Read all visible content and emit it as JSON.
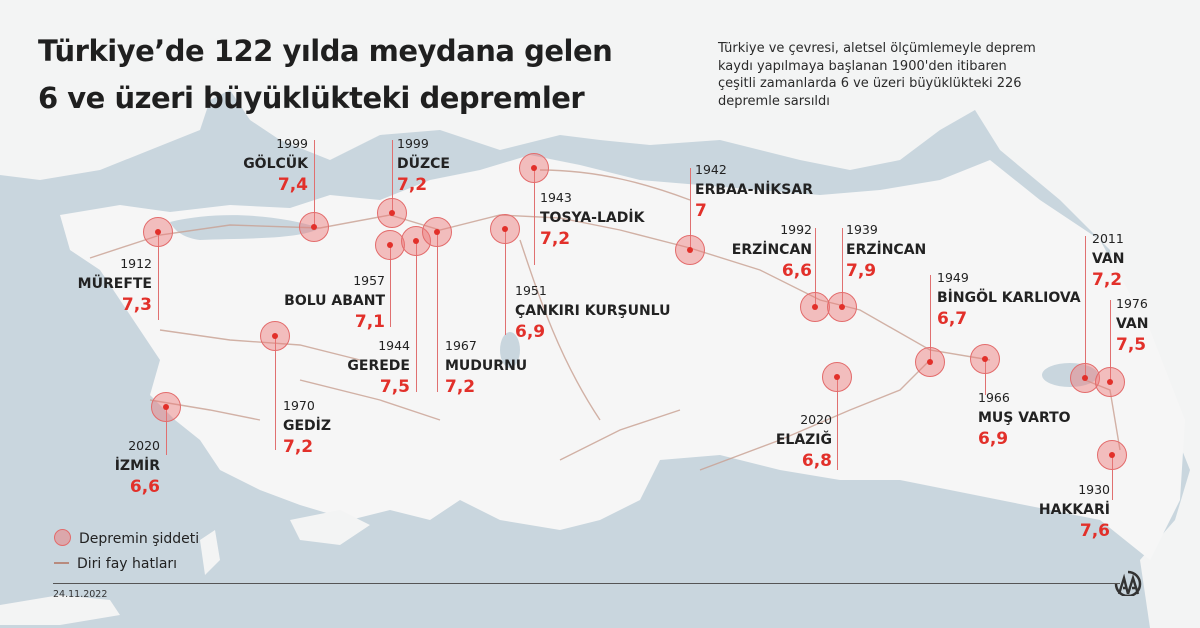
{
  "title": {
    "line1": "Türkiye’de 122 yılda meydana gelen",
    "line2": "6 ve üzeri büyüklükteki depremler"
  },
  "subtitle": "Türkiye ve çevresi, aletsel ölçümlemeyle deprem kaydı yapılmaya başlanan 1900'den itibaren çeşitli zamanlarda 6 ve üzeri büyüklükteki 226 depremle sarsıldı",
  "earthquakes": [
    {
      "year": "1999",
      "place": "GÖLCÜK",
      "magnitude": "7,4"
    },
    {
      "year": "1999",
      "place": "DÜZCE",
      "magnitude": "7,2"
    },
    {
      "year": "1912",
      "place": "MÜREFTE",
      "magnitude": "7,3"
    },
    {
      "year": "1957",
      "place": "BOLU ABANT",
      "magnitude": "7,1"
    },
    {
      "year": "1944",
      "place": "GEREDE",
      "magnitude": "7,5"
    },
    {
      "year": "1967",
      "place": "MUDURNU",
      "magnitude": "7,2"
    },
    {
      "year": "1951",
      "place": "ÇANKIRI KURŞUNLU",
      "magnitude": "6,9"
    },
    {
      "year": "1943",
      "place": "TOSYA-LADİK",
      "magnitude": "7,2"
    },
    {
      "year": "1942",
      "place": "ERBAA-NİKSAR",
      "magnitude": "7"
    },
    {
      "year": "1992",
      "place": "ERZİNCAN",
      "magnitude": "6,6"
    },
    {
      "year": "1939",
      "place": "ERZİNCAN",
      "magnitude": "7,9"
    },
    {
      "year": "1949",
      "place": "BİNGÖL KARLIOVA",
      "magnitude": "6,7"
    },
    {
      "year": "1966",
      "place": "MUŞ VARTO",
      "magnitude": "6,9"
    },
    {
      "year": "2020",
      "place": "ELAZIĞ",
      "magnitude": "6,8"
    },
    {
      "year": "2011",
      "place": "VAN",
      "magnitude": "7,2"
    },
    {
      "year": "1976",
      "place": "VAN",
      "magnitude": "7,5"
    },
    {
      "year": "1930",
      "place": "HAKKARİ",
      "magnitude": "7,6"
    },
    {
      "year": "1970",
      "place": "GEDİZ",
      "magnitude": "7,2"
    },
    {
      "year": "2020",
      "place": "İZMİR",
      "magnitude": "6,6"
    }
  ],
  "legend": {
    "intensity": "Depremin şiddeti",
    "faults": "Diri fay hatları"
  },
  "date": "24.11.2022",
  "logo_text": "AA",
  "colors": {
    "sea": "#c9d6de",
    "land": "#f3f4f4",
    "marker": "#e2302a",
    "fault": "#b88b7e"
  }
}
